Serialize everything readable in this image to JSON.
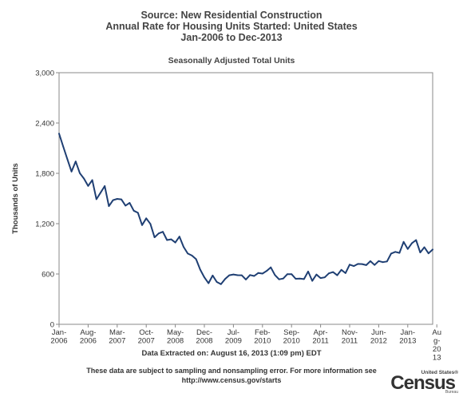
{
  "title": {
    "line1": "Source: New Residential Construction",
    "line2": "Annual Rate for Housing Units Started: United States",
    "line3": "Jan-2006 to Dec-2013"
  },
  "subtitle": "Seasonally Adjusted Total Units",
  "extracted": "Data Extracted on: August 16, 2013 (1:09 pm) EDT",
  "footer": {
    "line1": "These data are subject to sampling and nonsampling error. For more information see",
    "line2": "http://www.census.gov/starts"
  },
  "logo": {
    "top": "United States®",
    "main": "Census",
    "sub": "Bureau"
  },
  "colors": {
    "line": "#1f3f73",
    "axis": "#888888"
  },
  "chart_data": {
    "type": "line",
    "title": "Seasonally Adjusted Total Units",
    "xlabel": "",
    "ylabel": "Thousands of Units",
    "ylim": [
      0,
      3000
    ],
    "yticks": [
      0,
      600,
      1200,
      1800,
      2400,
      3000
    ],
    "ytick_labels": [
      "0",
      "600",
      "1,200",
      "1,800",
      "2,400",
      "3,000"
    ],
    "grid": false,
    "xtick_labels": [
      {
        "index": 0,
        "lines": [
          "Jan-",
          "2006"
        ]
      },
      {
        "index": 7,
        "lines": [
          "Aug-",
          "2006"
        ]
      },
      {
        "index": 14,
        "lines": [
          "Mar-",
          "2007"
        ]
      },
      {
        "index": 21,
        "lines": [
          "Oct-",
          "2007"
        ]
      },
      {
        "index": 28,
        "lines": [
          "May-",
          "2008"
        ]
      },
      {
        "index": 35,
        "lines": [
          "Dec-",
          "2008"
        ]
      },
      {
        "index": 42,
        "lines": [
          "Jul-",
          "2009"
        ]
      },
      {
        "index": 49,
        "lines": [
          "Feb-",
          "2010"
        ]
      },
      {
        "index": 56,
        "lines": [
          "Sep-",
          "2010"
        ]
      },
      {
        "index": 63,
        "lines": [
          "Apr-",
          "2011"
        ]
      },
      {
        "index": 70,
        "lines": [
          "Nov-",
          "2011"
        ]
      },
      {
        "index": 77,
        "lines": [
          "Jun-",
          "2012"
        ]
      },
      {
        "index": 84,
        "lines": [
          "Jan-",
          "2013"
        ]
      },
      {
        "index": 91,
        "lines": [
          "Au",
          "g-",
          "20",
          "13"
        ]
      }
    ],
    "x": [
      "2006-01",
      "2006-02",
      "2006-03",
      "2006-04",
      "2006-05",
      "2006-06",
      "2006-07",
      "2006-08",
      "2006-09",
      "2006-10",
      "2006-11",
      "2006-12",
      "2007-01",
      "2007-02",
      "2007-03",
      "2007-04",
      "2007-05",
      "2007-06",
      "2007-07",
      "2007-08",
      "2007-09",
      "2007-10",
      "2007-11",
      "2007-12",
      "2008-01",
      "2008-02",
      "2008-03",
      "2008-04",
      "2008-05",
      "2008-06",
      "2008-07",
      "2008-08",
      "2008-09",
      "2008-10",
      "2008-11",
      "2008-12",
      "2009-01",
      "2009-02",
      "2009-03",
      "2009-04",
      "2009-05",
      "2009-06",
      "2009-07",
      "2009-08",
      "2009-09",
      "2009-10",
      "2009-11",
      "2009-12",
      "2010-01",
      "2010-02",
      "2010-03",
      "2010-04",
      "2010-05",
      "2010-06",
      "2010-07",
      "2010-08",
      "2010-09",
      "2010-10",
      "2010-11",
      "2010-12",
      "2011-01",
      "2011-02",
      "2011-03",
      "2011-04",
      "2011-05",
      "2011-06",
      "2011-07",
      "2011-08",
      "2011-09",
      "2011-10",
      "2011-11",
      "2011-12",
      "2012-01",
      "2012-02",
      "2012-03",
      "2012-04",
      "2012-05",
      "2012-06",
      "2012-07",
      "2012-08",
      "2012-09",
      "2012-10",
      "2012-11",
      "2012-12",
      "2013-01",
      "2013-02",
      "2013-03",
      "2013-04",
      "2013-05",
      "2013-06",
      "2013-07"
    ],
    "series": [
      {
        "values": [
          2273,
          2119,
          1969,
          1821,
          1942,
          1802,
          1737,
          1650,
          1720,
          1491,
          1570,
          1649,
          1409,
          1480,
          1495,
          1490,
          1415,
          1448,
          1354,
          1330,
          1183,
          1264,
          1197,
          1037,
          1084,
          1103,
          1005,
          1013,
          975,
          1046,
          923,
          844,
          820,
          777,
          652,
          560,
          490,
          582,
          505,
          478,
          540,
          585,
          594,
          586,
          585,
          534,
          588,
          576,
          612,
          605,
          636,
          679,
          588,
          536,
          546,
          598,
          598,
          543,
          545,
          539,
          630,
          518,
          593,
          551,
          560,
          608,
          623,
          585,
          650,
          610,
          711,
          694,
          720,
          718,
          706,
          753,
          708,
          754,
          741,
          750,
          844,
          864,
          851,
          983,
          898,
          968,
          1005,
          856,
          919,
          846,
          891
        ]
      }
    ]
  }
}
